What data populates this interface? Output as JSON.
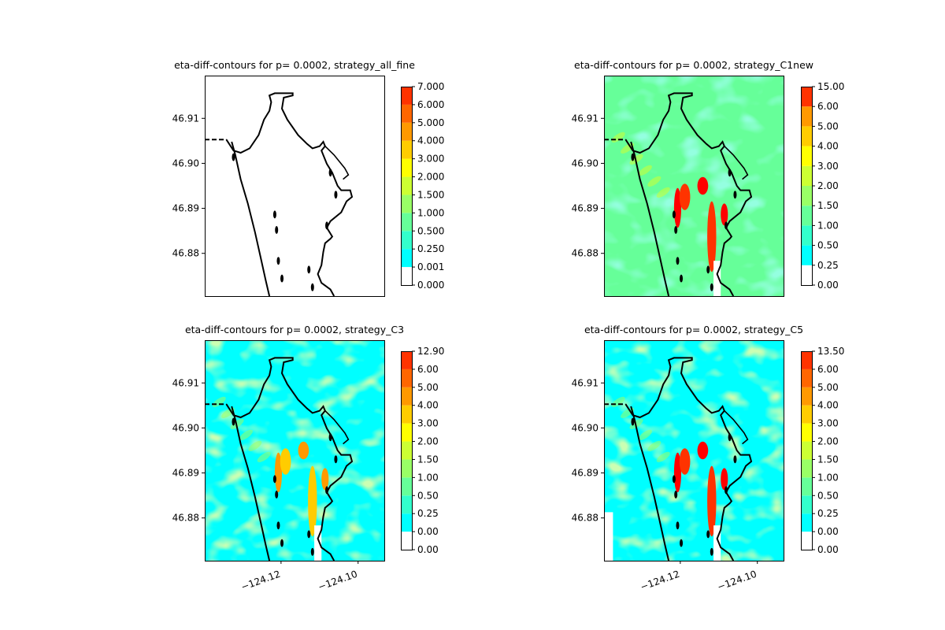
{
  "chart_data": [
    {
      "type": "heatmap",
      "title": "eta-diff-contours for p= 0.0002, strategy_all_fine",
      "background": "white",
      "colorbar": {
        "levels": [
          "0.000",
          "0.001",
          "0.250",
          "0.500",
          "1.000",
          "1.500",
          "2.000",
          "3.000",
          "4.000",
          "5.000",
          "6.000",
          "7.000"
        ],
        "colors": [
          "#ffffff",
          "#00ffff",
          "#33ffcc",
          "#66ff99",
          "#99ff66",
          "#ccff33",
          "#ffff00",
          "#ffcc00",
          "#ff9900",
          "#ff6600",
          "#ff3300",
          "#ff0000"
        ]
      },
      "ylabel": "",
      "yticks": [
        "46.88",
        "46.89",
        "46.90",
        "46.91"
      ],
      "xticks": [],
      "hot_spots": []
    },
    {
      "type": "heatmap",
      "title": "eta-diff-contours for p= 0.0002, strategy_C1new",
      "background": "#66ff99",
      "colorbar": {
        "levels": [
          "0.00",
          "0.25",
          "0.50",
          "1.00",
          "1.50",
          "2.00",
          "3.00",
          "4.00",
          "5.00",
          "6.00",
          "15.00"
        ],
        "colors": [
          "#ffffff",
          "#00ffff",
          "#33ffcc",
          "#66ff99",
          "#99ff66",
          "#ccff33",
          "#ffff00",
          "#ffcc00",
          "#ff9900",
          "#ff3300",
          "#ff0000"
        ]
      },
      "yticks": [
        "46.88",
        "46.89",
        "46.90",
        "46.91"
      ],
      "xticks": [],
      "hot_spots": [
        "red",
        "orange",
        "yellow"
      ]
    },
    {
      "type": "heatmap",
      "title": "eta-diff-contours for p= 0.0002, strategy_C3",
      "background": "#00ffff",
      "colorbar": {
        "levels": [
          "0.00",
          "0.00",
          "0.25",
          "0.50",
          "1.00",
          "1.50",
          "2.00",
          "3.00",
          "4.00",
          "5.00",
          "6.00",
          "12.90"
        ],
        "colors": [
          "#ffffff",
          "#00ffff",
          "#33ffcc",
          "#66ff99",
          "#99ff66",
          "#ccff33",
          "#ffff00",
          "#ffcc00",
          "#ff9900",
          "#ff6600",
          "#ff3300",
          "#ff0000"
        ]
      },
      "yticks": [
        "46.88",
        "46.89",
        "46.90",
        "46.91"
      ],
      "xticks": [
        "−124.12",
        "−124.10"
      ],
      "hot_spots": [
        "orange",
        "yellow"
      ]
    },
    {
      "type": "heatmap",
      "title": "eta-diff-contours for p= 0.0002, strategy_C5",
      "background": "#00ffff",
      "colorbar": {
        "levels": [
          "0.00",
          "0.00",
          "0.25",
          "0.50",
          "1.00",
          "1.50",
          "2.00",
          "3.00",
          "4.00",
          "5.00",
          "6.00",
          "13.50"
        ],
        "colors": [
          "#ffffff",
          "#00ffff",
          "#33ffcc",
          "#66ff99",
          "#99ff66",
          "#ccff33",
          "#ffff00",
          "#ffcc00",
          "#ff9900",
          "#ff6600",
          "#ff3300",
          "#ff0000"
        ]
      },
      "yticks": [
        "46.88",
        "46.89",
        "46.90",
        "46.91"
      ],
      "xticks": [
        "−124.12",
        "−124.10"
      ],
      "hot_spots": [
        "red",
        "orange"
      ]
    }
  ],
  "shared": {
    "ylim": [
      46.8705,
      46.9195
    ],
    "xlim": [
      -124.1398,
      -124.0932
    ],
    "ytick_values": [
      46.88,
      46.89,
      46.9,
      46.91
    ],
    "xtick_values": [
      -124.12,
      -124.1
    ]
  }
}
